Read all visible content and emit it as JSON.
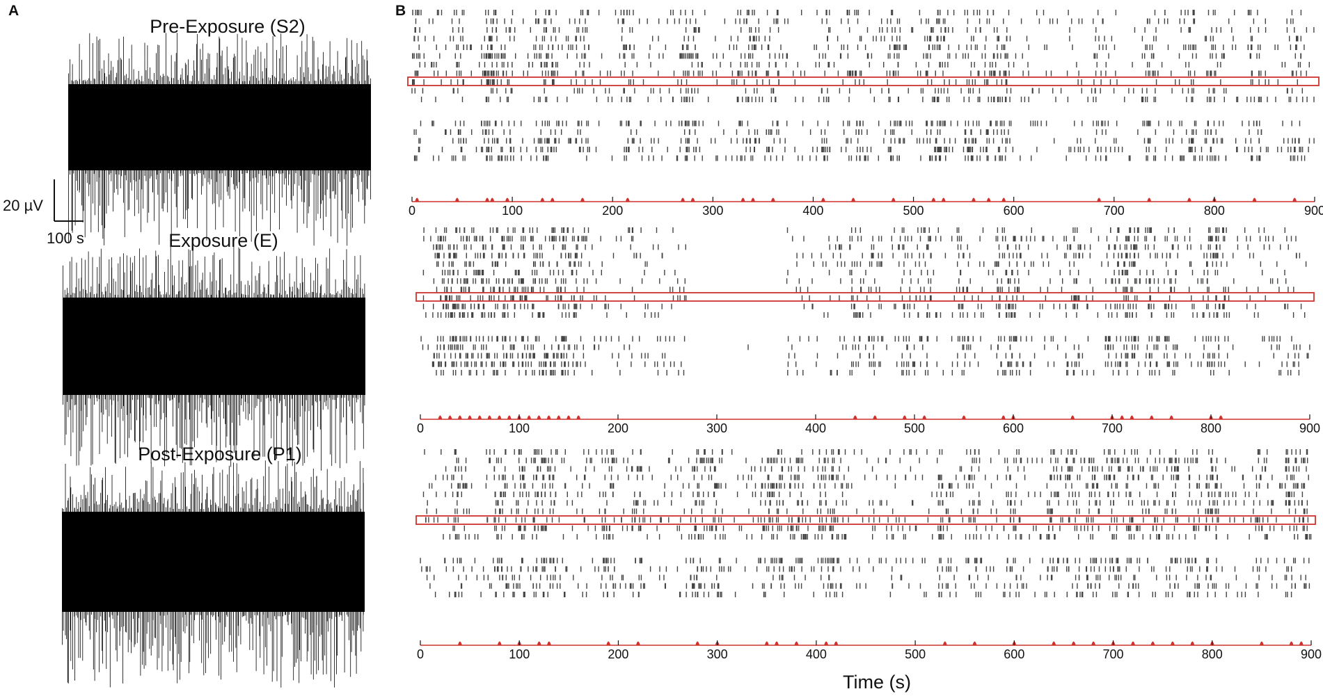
{
  "panels": {
    "a_label": "A",
    "b_label": "B"
  },
  "scale_bar": {
    "amplitude": "20 µV",
    "time": "100 s"
  },
  "chart_data": [
    {
      "type": "line",
      "panel": "A",
      "title": "Pre-Exposure (S2)",
      "note": "dense extracellular voltage trace"
    },
    {
      "type": "line",
      "panel": "A",
      "title": "Exposure (E)",
      "note": "dense extracellular voltage trace"
    },
    {
      "type": "line",
      "panel": "A",
      "title": "Post-Exposure (P1)",
      "note": "dense extracellular voltage trace"
    },
    {
      "type": "scatter",
      "panel": "B",
      "subtype": "raster",
      "xlim": [
        0,
        900
      ],
      "xticks": [
        "0",
        "100",
        "200",
        "300",
        "400",
        "500",
        "600",
        "700",
        "800",
        "900"
      ],
      "highlight_row": 6,
      "rows": 16,
      "marker_color": "#444444",
      "highlight_color": "#d0312d",
      "network_bursts_s": [
        5,
        45,
        75,
        80,
        95,
        130,
        140,
        170,
        215,
        270,
        280,
        330,
        340,
        360,
        410,
        440,
        480,
        520,
        530,
        560,
        575,
        590,
        685,
        735,
        775,
        800,
        840,
        880
      ]
    },
    {
      "type": "scatter",
      "panel": "B",
      "subtype": "raster",
      "xlim": [
        0,
        900
      ],
      "xticks": [
        "0",
        "100",
        "200",
        "300",
        "400",
        "500",
        "600",
        "700",
        "800",
        "900"
      ],
      "highlight_row": 6,
      "rows": 16,
      "silent_interval_s": [
        270,
        370
      ],
      "marker_color": "#444444",
      "highlight_color": "#d0312d",
      "network_bursts_s": [
        20,
        30,
        40,
        50,
        60,
        70,
        80,
        90,
        100,
        110,
        120,
        130,
        140,
        150,
        160,
        440,
        460,
        490,
        510,
        550,
        590,
        600,
        660,
        700,
        710,
        720,
        740,
        760,
        800,
        810
      ]
    },
    {
      "type": "scatter",
      "panel": "B",
      "subtype": "raster",
      "xlim": [
        0,
        900
      ],
      "xticks": [
        "0",
        "100",
        "200",
        "300",
        "400",
        "500",
        "600",
        "700",
        "800",
        "900"
      ],
      "highlight_row": 6,
      "rows": 16,
      "marker_color": "#444444",
      "highlight_color": "#d0312d",
      "network_bursts_s": [
        40,
        80,
        100,
        120,
        130,
        190,
        220,
        280,
        300,
        350,
        360,
        380,
        410,
        420,
        530,
        560,
        600,
        640,
        660,
        680,
        700,
        720,
        740,
        760,
        780,
        800,
        850,
        880,
        890
      ],
      "xlabel": "Time (s)"
    }
  ]
}
